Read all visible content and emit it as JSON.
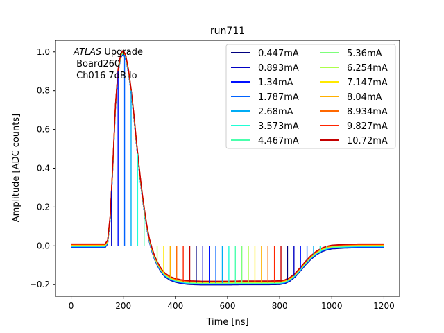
{
  "chart_data": {
    "type": "line",
    "title": "run711",
    "xlabel": "Time [ns]",
    "ylabel": "Amplitude [ADC counts]",
    "xlim": [
      -60,
      1260
    ],
    "ylim": [
      -0.26,
      1.06
    ],
    "xticks": [
      0,
      200,
      400,
      600,
      800,
      1000,
      1200
    ],
    "xtick_labels": [
      "0",
      "200",
      "400",
      "600",
      "800",
      "1000",
      "1200"
    ],
    "yticks": [
      -0.2,
      0.0,
      0.2,
      0.4,
      0.6,
      0.8,
      1.0
    ],
    "ytick_labels": [
      "−0.2",
      "0.0",
      "0.2",
      "0.4",
      "0.6",
      "0.8",
      "1.0"
    ],
    "annotation": {
      "italic": "ATLAS",
      "rest": " Upgrade",
      "line2": " Board260",
      "line3": " Ch016 7dB lo"
    },
    "legend_position": "upper right",
    "legend_columns": 2,
    "pulse_shape": {
      "x": [
        0,
        130,
        140,
        150,
        160,
        170,
        180,
        190,
        200,
        210,
        220,
        230,
        240,
        250,
        260,
        270,
        280,
        290,
        300,
        310,
        320,
        330,
        340,
        350,
        360,
        380,
        400,
        420,
        440,
        460,
        480,
        500,
        520,
        540,
        560,
        600,
        650,
        700,
        750,
        800,
        820,
        840,
        860,
        880,
        900,
        920,
        940,
        960,
        980,
        1000,
        1050,
        1100,
        1150,
        1200
      ],
      "y": [
        0.0,
        0.0,
        0.02,
        0.15,
        0.42,
        0.72,
        0.9,
        0.98,
        1.0,
        0.97,
        0.9,
        0.8,
        0.68,
        0.54,
        0.41,
        0.29,
        0.19,
        0.1,
        0.03,
        -0.02,
        -0.06,
        -0.09,
        -0.115,
        -0.135,
        -0.15,
        -0.168,
        -0.178,
        -0.184,
        -0.188,
        -0.19,
        -0.191,
        -0.192,
        -0.192,
        -0.192,
        -0.192,
        -0.192,
        -0.191,
        -0.191,
        -0.191,
        -0.19,
        -0.185,
        -0.172,
        -0.15,
        -0.12,
        -0.088,
        -0.06,
        -0.038,
        -0.022,
        -0.012,
        -0.006,
        -0.002,
        0.0,
        0.0,
        0.0
      ]
    },
    "series": [
      {
        "name": "0.447mA",
        "color": "#00007f"
      },
      {
        "name": "0.893mA",
        "color": "#0000c4"
      },
      {
        "name": "1.34mA",
        "color": "#0010ff"
      },
      {
        "name": "1.787mA",
        "color": "#0062ff"
      },
      {
        "name": "2.68mA",
        "color": "#00acf5"
      },
      {
        "name": "3.573mA",
        "color": "#20ffd6"
      },
      {
        "name": "4.467mA",
        "color": "#4affad"
      },
      {
        "name": "5.36mA",
        "color": "#7dff7a"
      },
      {
        "name": "6.254mA",
        "color": "#adff4a"
      },
      {
        "name": "7.147mA",
        "color": "#ffe900"
      },
      {
        "name": "8.04mA",
        "color": "#ffb000"
      },
      {
        "name": "8.934mA",
        "color": "#ff6800"
      },
      {
        "name": "9.827mA",
        "color": "#ff2500"
      },
      {
        "name": "10.72mA",
        "color": "#c40000"
      }
    ],
    "sampling": {
      "spike_times": [
        130,
        155,
        180,
        205,
        230,
        255,
        280,
        305,
        330,
        355,
        380,
        405,
        430,
        455,
        480,
        505,
        530,
        555,
        580,
        605,
        630,
        655,
        680,
        705,
        730,
        755,
        780,
        805,
        830,
        855,
        880,
        905,
        930,
        955,
        980,
        1005,
        1030
      ]
    }
  }
}
